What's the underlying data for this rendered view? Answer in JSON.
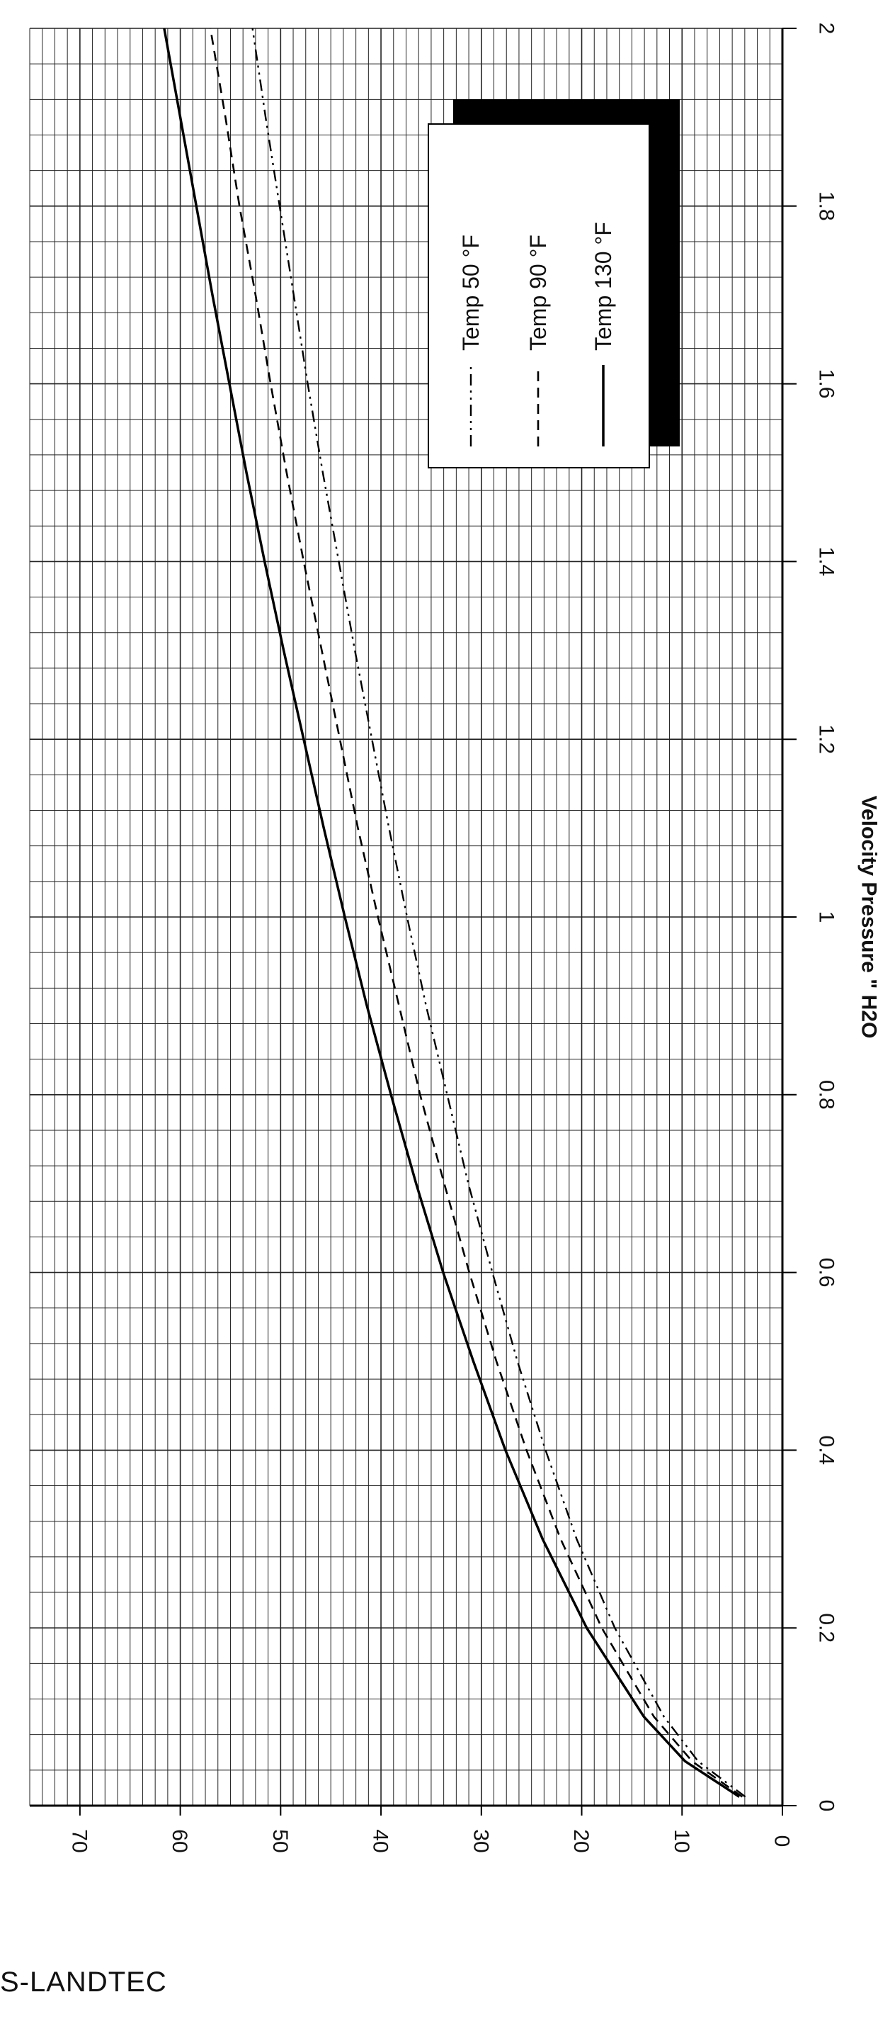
{
  "chart_data": {
    "type": "line",
    "orientation": "rotated-90",
    "title": "",
    "xlabel": "Velocity Pressure \" H2O",
    "ylabel": "",
    "xlim": [
      0,
      2
    ],
    "ylim": [
      0,
      75
    ],
    "x_ticks": [
      "0",
      "0.2",
      "0.4",
      "0.6",
      "0.8",
      "1",
      "1.2",
      "1.4",
      "1.6",
      "1.8",
      "2"
    ],
    "y_ticks": [
      "0",
      "10",
      "20",
      "30",
      "40",
      "50",
      "60",
      "70"
    ],
    "grid": true,
    "legend_position": "top-right",
    "x": [
      0.01,
      0.05,
      0.1,
      0.2,
      0.3,
      0.4,
      0.5,
      0.6,
      0.7,
      0.8,
      0.9,
      1.0,
      1.1,
      1.2,
      1.3,
      1.4,
      1.5,
      1.6,
      1.7,
      1.8,
      1.9,
      2.0
    ],
    "series": [
      {
        "name": "Temp 50 °F",
        "style": "dash-dot-dot",
        "values": [
          3.7,
          8.4,
          11.8,
          16.7,
          20.5,
          23.6,
          26.4,
          28.9,
          31.3,
          33.4,
          35.5,
          37.4,
          39.2,
          40.9,
          42.6,
          44.2,
          45.8,
          47.3,
          48.7,
          50.1,
          51.5,
          52.8
        ]
      },
      {
        "name": "Temp 90 °F",
        "style": "dashed",
        "values": [
          4.0,
          9.0,
          12.8,
          18.0,
          22.1,
          25.5,
          28.5,
          31.2,
          33.7,
          36.1,
          38.2,
          40.3,
          42.3,
          44.1,
          45.9,
          47.7,
          49.4,
          51.0,
          52.5,
          54.1,
          55.5,
          57.0
        ]
      },
      {
        "name": "Temp 130 °F",
        "style": "solid",
        "values": [
          4.3,
          9.7,
          13.8,
          19.5,
          23.9,
          27.6,
          30.8,
          33.8,
          36.5,
          39.0,
          41.4,
          43.6,
          45.7,
          47.7,
          49.7,
          51.6,
          53.4,
          55.1,
          56.8,
          58.4,
          60.0,
          61.6
        ]
      }
    ]
  },
  "footer": {
    "text": "S-LANDTEC"
  }
}
